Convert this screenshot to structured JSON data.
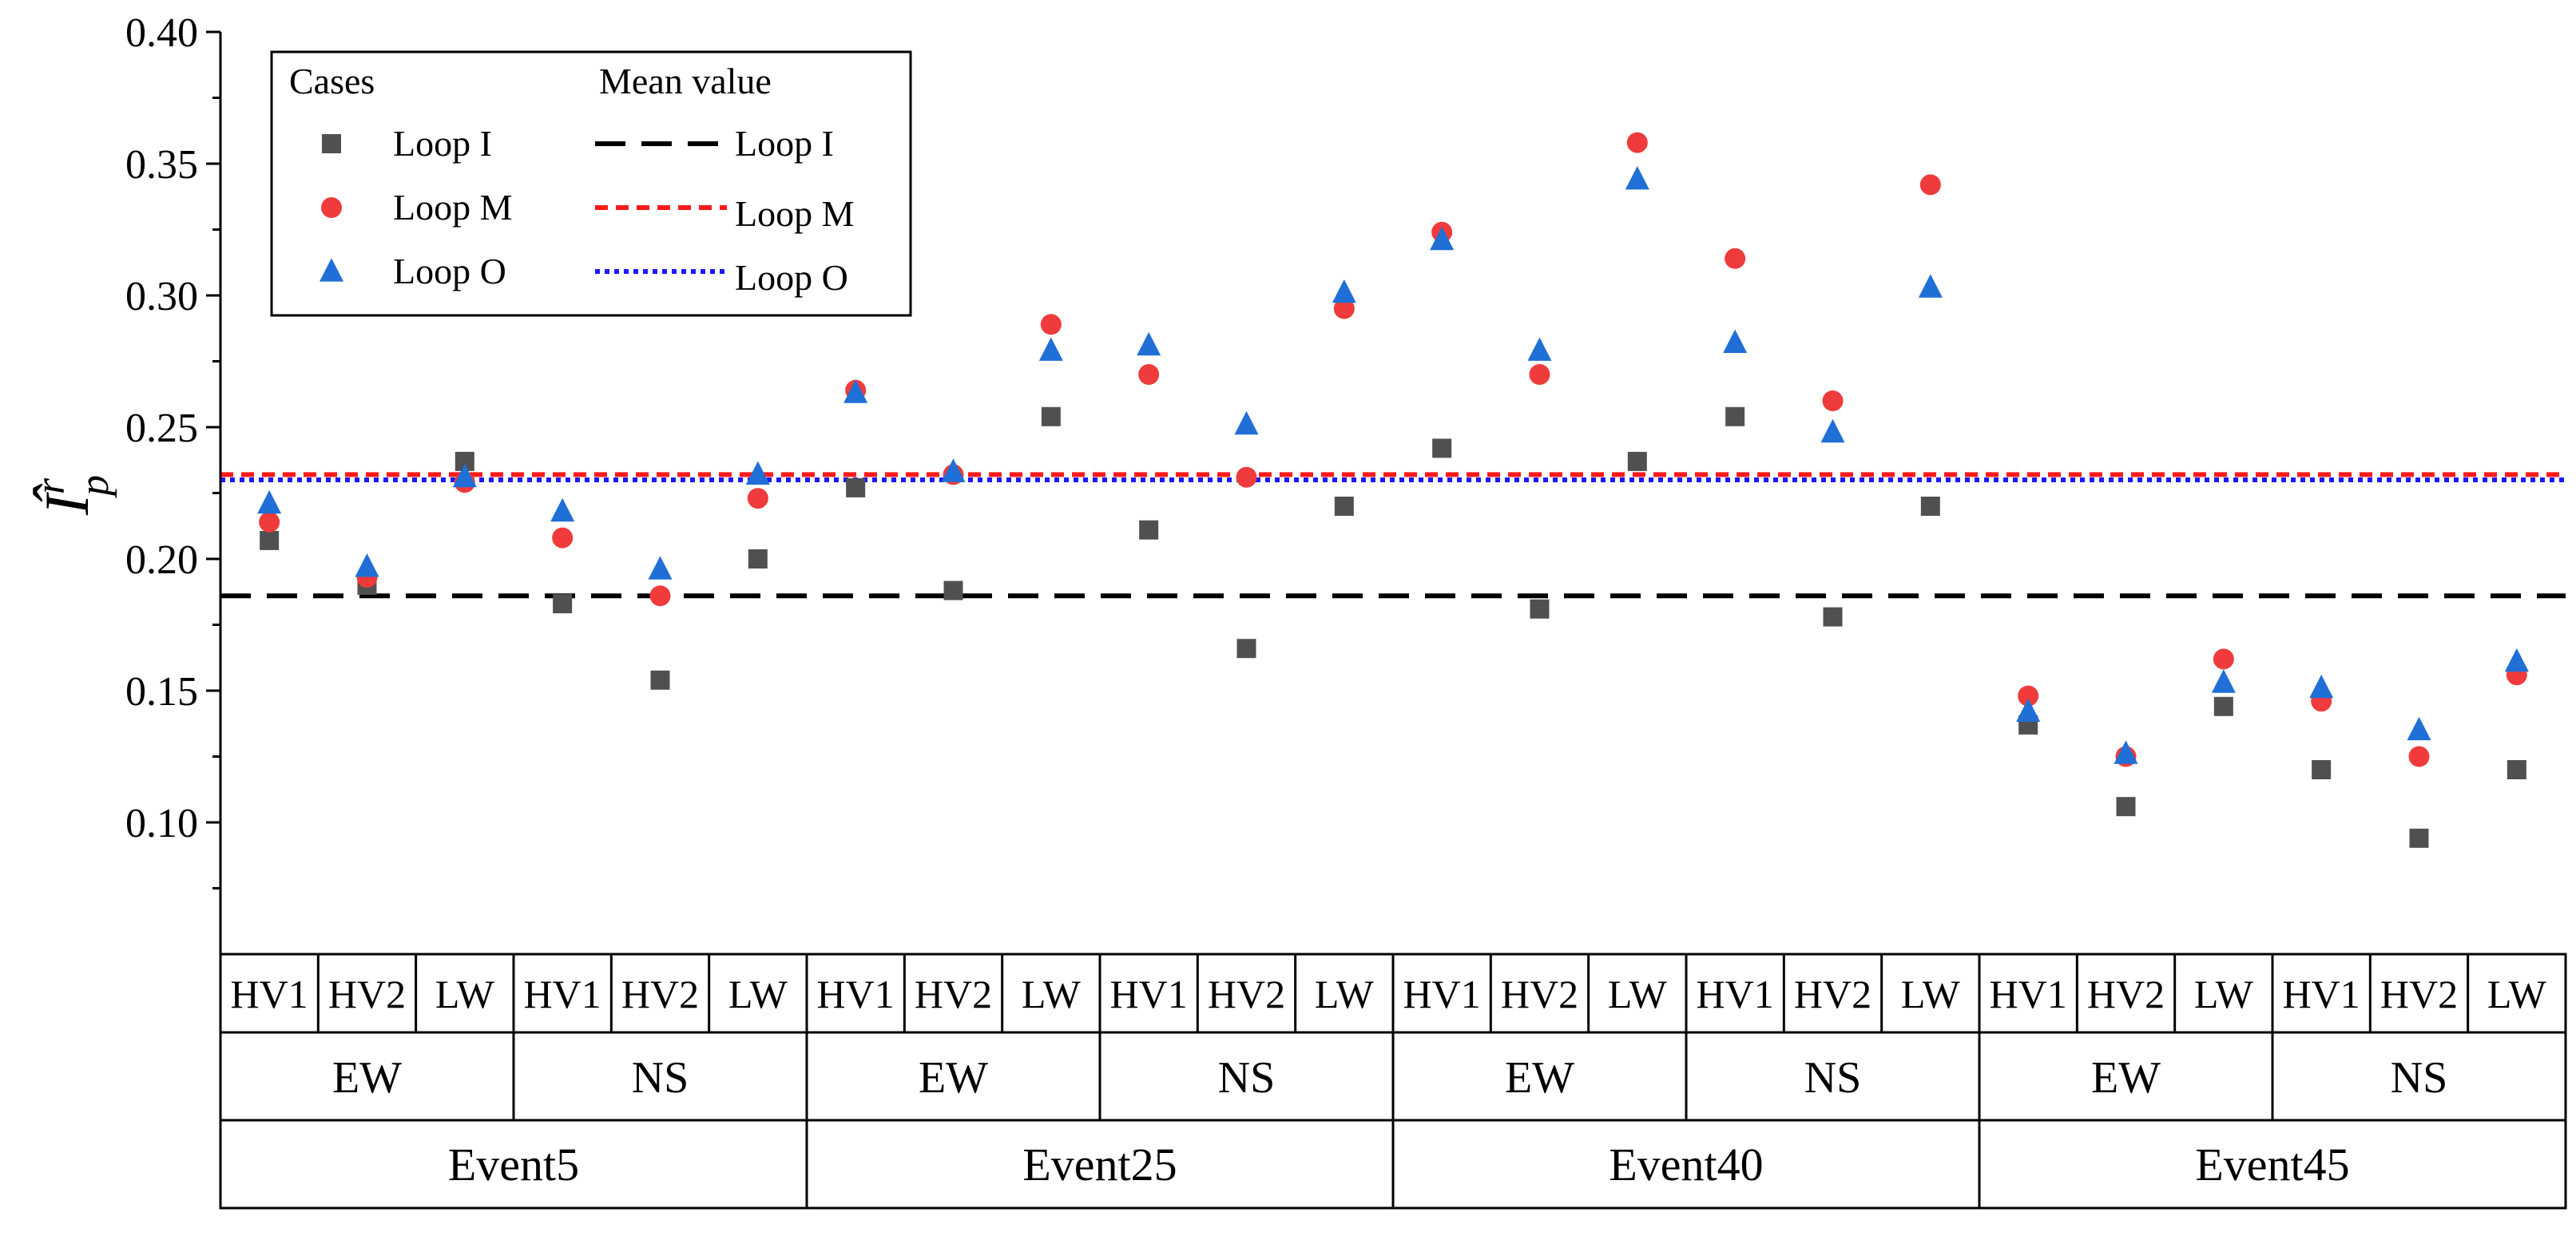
{
  "chart_data": {
    "type": "scatter",
    "ylabel_var": "I",
    "ylabel_sup": "r",
    "ylabel_sub": "p",
    "ylim": [
      0.05,
      0.4
    ],
    "yticks": [
      "0.10",
      "0.15",
      "0.20",
      "0.25",
      "0.30",
      "0.35",
      "0.40"
    ],
    "categories": [
      "HV1",
      "HV2",
      "LW",
      "HV1",
      "HV2",
      "LW",
      "HV1",
      "HV2",
      "LW",
      "HV1",
      "HV2",
      "LW",
      "HV1",
      "HV2",
      "LW",
      "HV1",
      "HV2",
      "LW",
      "HV1",
      "HV2",
      "LW",
      "HV1",
      "HV2",
      "LW"
    ],
    "directions": [
      "EW",
      "NS",
      "EW",
      "NS",
      "EW",
      "NS",
      "EW",
      "NS"
    ],
    "events": [
      "Event5",
      "Event25",
      "Event40",
      "Event45"
    ],
    "series": [
      {
        "name": "Loop I",
        "color": "#505050",
        "marker": "square",
        "values": [
          0.207,
          0.19,
          0.237,
          0.183,
          0.154,
          0.2,
          0.227,
          0.188,
          0.254,
          0.211,
          0.166,
          0.22,
          0.242,
          0.181,
          0.237,
          0.254,
          0.178,
          0.22,
          0.137,
          0.106,
          0.144,
          0.12,
          0.094,
          0.12
        ]
      },
      {
        "name": "Loop M",
        "color": "#ef3b3b",
        "marker": "circle",
        "values": [
          0.214,
          0.193,
          0.229,
          0.208,
          0.186,
          0.223,
          0.264,
          0.232,
          0.289,
          0.27,
          0.231,
          0.295,
          0.324,
          0.27,
          0.358,
          0.314,
          0.26,
          0.342,
          0.148,
          0.125,
          0.162,
          0.146,
          0.125,
          0.156
        ]
      },
      {
        "name": "Loop O",
        "color": "#1f6fd6",
        "marker": "triangle",
        "values": [
          0.221,
          0.197,
          0.231,
          0.218,
          0.196,
          0.232,
          0.263,
          0.233,
          0.279,
          0.281,
          0.251,
          0.301,
          0.321,
          0.279,
          0.344,
          0.282,
          0.248,
          0.303,
          0.142,
          0.126,
          0.153,
          0.151,
          0.135,
          0.161
        ]
      }
    ],
    "mean_lines": [
      {
        "name": "Loop I",
        "value": 0.186,
        "color": "#000000",
        "style": "dashed"
      },
      {
        "name": "Loop M",
        "value": 0.232,
        "color": "#ff1a1a",
        "style": "short-dash"
      },
      {
        "name": "Loop O",
        "value": 0.23,
        "color": "#1a1aff",
        "style": "dotted"
      }
    ],
    "legend": {
      "placement": "top-left",
      "cases_title": "Cases",
      "mean_title": "Mean value"
    }
  }
}
